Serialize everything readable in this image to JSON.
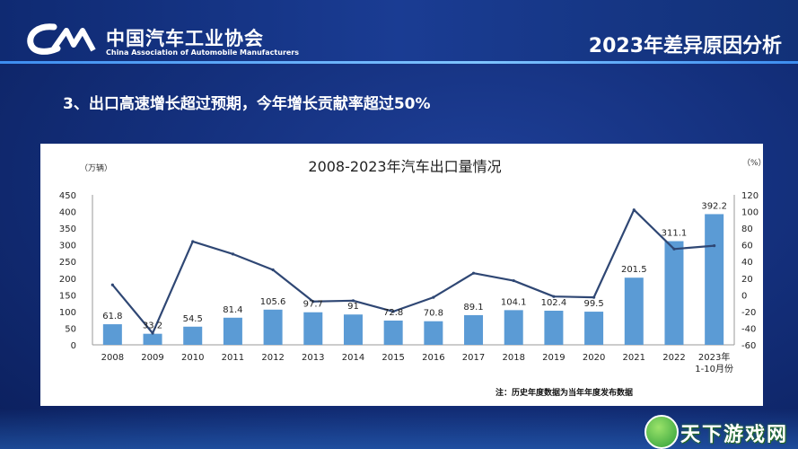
{
  "header": {
    "org_cn": "中国汽车工业协会",
    "org_en": "China Association of Automobile Manufacturers",
    "slide_title": "2023年差异原因分析"
  },
  "subtitle": "3、出口高速增长超过预期，今年增长贡献率超过50%",
  "watermark": "天下游戏网",
  "colors": {
    "bar": "#5b9bd5",
    "line": "#2f4774",
    "background": "#14307d"
  },
  "chart_data": {
    "type": "bar",
    "title": "2008-2023年汽车出口量情况",
    "left_unit": "（万辆）",
    "right_unit": "（%）",
    "note": "注：历史年度数据为当年年度发布数据",
    "categories": [
      "2008",
      "2009",
      "2010",
      "2011",
      "2012",
      "2013",
      "2014",
      "2015",
      "2016",
      "2017",
      "2018",
      "2019",
      "2020",
      "2021",
      "2022",
      "2023年\n1-10月份"
    ],
    "series": [
      {
        "type": "bar",
        "axis": "left",
        "values": [
          61.8,
          33.2,
          54.5,
          81.4,
          105.6,
          97.7,
          91,
          72.8,
          70.8,
          89.1,
          104.1,
          102.4,
          99.5,
          201.5,
          311.1,
          392.2
        ],
        "labels": [
          "61.8",
          "33.2",
          "54.5",
          "81.4",
          "105.6",
          "97.7",
          "91",
          "72.8",
          "70.8",
          "89.1",
          "104.1",
          "102.4",
          "99.5",
          "201.5",
          "311.1",
          "392.2"
        ]
      },
      {
        "type": "line",
        "axis": "right",
        "values": [
          12,
          -46,
          64,
          49,
          30,
          -8,
          -7,
          -20,
          -3,
          26,
          17,
          -2,
          -3,
          102,
          55,
          59
        ]
      }
    ],
    "ylim_left": [
      0,
      450
    ],
    "yticks_left": [
      "0",
      "50",
      "100",
      "150",
      "200",
      "250",
      "300",
      "350",
      "400",
      "450"
    ],
    "ylim_right": [
      -60,
      120
    ],
    "yticks_right": [
      "-60",
      "-40",
      "-20",
      "0",
      "20",
      "40",
      "60",
      "80",
      "100",
      "120"
    ],
    "grid": false,
    "legend": "none"
  }
}
